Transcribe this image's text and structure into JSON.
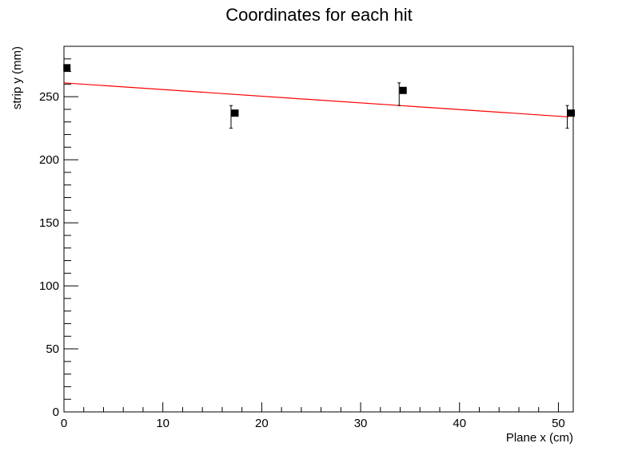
{
  "chart_data": {
    "type": "scatter",
    "title": "Coordinates for each hit",
    "xlabel": "Plane x (cm)",
    "ylabel": "strip  y (mm)",
    "xlim": [
      0,
      51.5
    ],
    "ylim": [
      0,
      290
    ],
    "x_ticks": [
      0,
      10,
      20,
      30,
      40,
      50
    ],
    "x_tick_labels": [
      "0",
      "10",
      "20",
      "30",
      "40",
      "50"
    ],
    "y_ticks": [
      0,
      50,
      100,
      150,
      200,
      250
    ],
    "y_tick_labels": [
      "0",
      "50",
      "100",
      "150",
      "200",
      "250"
    ],
    "grid": false,
    "series": [
      {
        "kind": "points",
        "marker": "square",
        "color": "#000000",
        "points": [
          {
            "x": 0.3,
            "y": 273,
            "err_low": 0,
            "err_high": 0
          },
          {
            "x": 17.3,
            "y": 237,
            "err_low": 12,
            "err_high": 6
          },
          {
            "x": 34.3,
            "y": 255,
            "err_low": 12,
            "err_high": 6
          },
          {
            "x": 51.3,
            "y": 237,
            "err_low": 12,
            "err_high": 6
          }
        ]
      },
      {
        "kind": "fit-line",
        "color": "#ff0000",
        "x": [
          0,
          51
        ],
        "y": [
          261,
          234
        ]
      }
    ]
  }
}
